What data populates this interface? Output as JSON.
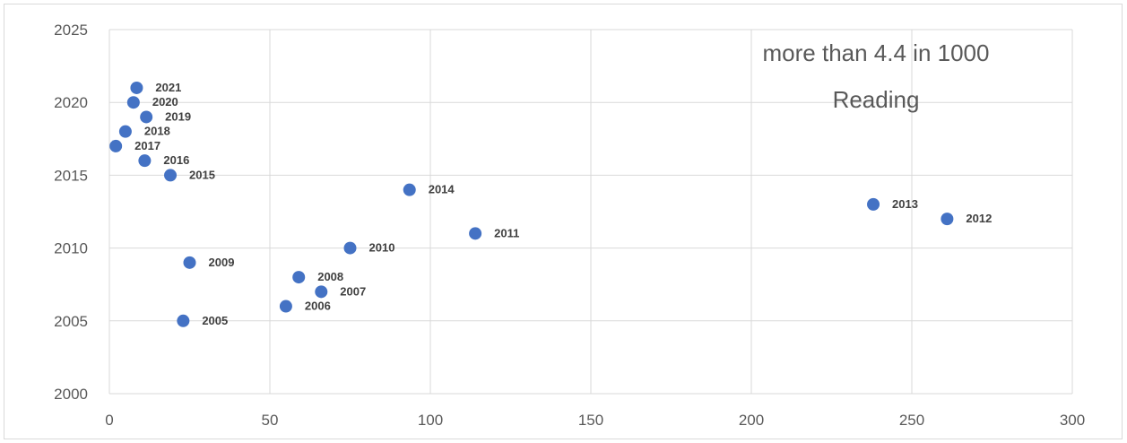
{
  "chart_data": {
    "type": "scatter",
    "title_lines": [
      "more than 4.4 in 1000",
      "Reading"
    ],
    "xlabel": "",
    "ylabel": "",
    "xlim": [
      0,
      300
    ],
    "ylim": [
      2000,
      2025
    ],
    "xticks": [
      0,
      50,
      100,
      150,
      200,
      250,
      300
    ],
    "yticks": [
      2000,
      2005,
      2010,
      2015,
      2020,
      2025
    ],
    "grid": true,
    "legend": "none",
    "marker_color": "#4472C4",
    "points": [
      {
        "x": 23,
        "y": 2005,
        "label": "2005"
      },
      {
        "x": 55,
        "y": 2006,
        "label": "2006"
      },
      {
        "x": 66,
        "y": 2007,
        "label": "2007"
      },
      {
        "x": 59,
        "y": 2008,
        "label": "2008"
      },
      {
        "x": 25,
        "y": 2009,
        "label": "2009"
      },
      {
        "x": 75,
        "y": 2010,
        "label": "2010"
      },
      {
        "x": 114,
        "y": 2011,
        "label": "2011"
      },
      {
        "x": 261,
        "y": 2012,
        "label": "2012"
      },
      {
        "x": 238,
        "y": 2013,
        "label": "2013"
      },
      {
        "x": 93.5,
        "y": 2014,
        "label": "2014"
      },
      {
        "x": 19,
        "y": 2015,
        "label": "2015"
      },
      {
        "x": 11,
        "y": 2016,
        "label": "2016"
      },
      {
        "x": 2,
        "y": 2017,
        "label": "2017"
      },
      {
        "x": 5,
        "y": 2018,
        "label": "2018"
      },
      {
        "x": 11.5,
        "y": 2019,
        "label": "2019"
      },
      {
        "x": 7.5,
        "y": 2020,
        "label": "2020"
      },
      {
        "x": 8.5,
        "y": 2021,
        "label": "2021"
      }
    ]
  }
}
